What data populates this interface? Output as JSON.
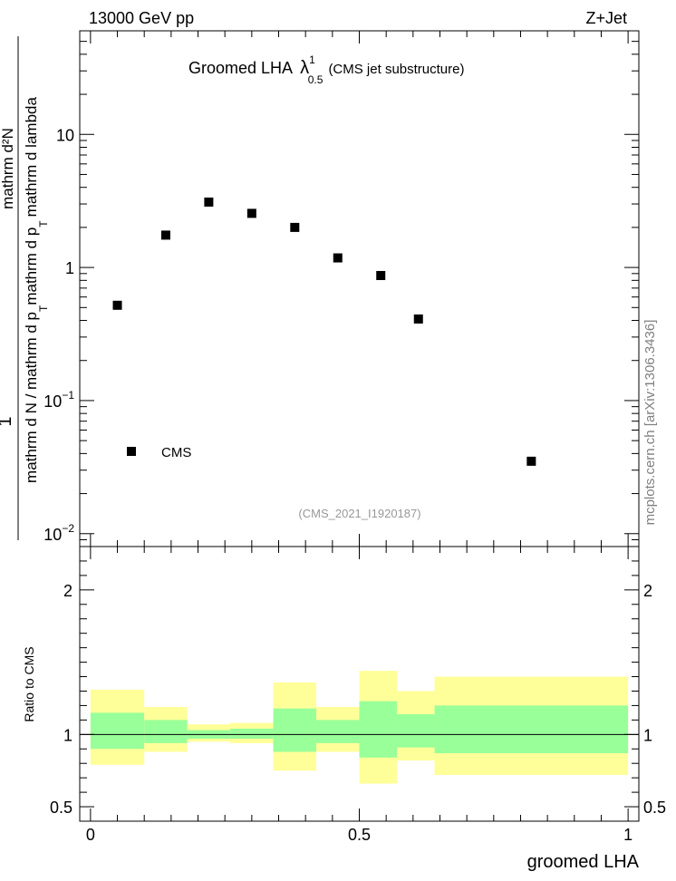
{
  "header": {
    "energy_label": "13000 GeV pp",
    "process_label": "Z+Jet"
  },
  "side_label": "mcplots.cern.ch [arXiv:1306.3436]",
  "chart_data": [
    {
      "type": "scatter",
      "title_prefix": "Groomed LHA",
      "title_symbol": "λ",
      "title_sup": "1",
      "title_sub": "0.5",
      "title_suffix": "(CMS jet substructure)",
      "analysis_id": "(CMS_2021_I1920187)",
      "ylabel_top": "1",
      "ylabel_parts": {
        "prefix": "mathrm d N / mathrm d p",
        "sub_t1": "T",
        "middle": "mathrm d p",
        "sub_t2": "T",
        "suffix": "mathrm d lambda"
      },
      "ylabel_num": "mathrm d²N",
      "yscale": "log",
      "ylim": [
        0.008,
        60
      ],
      "xlim": [
        -0.02,
        1.02
      ],
      "yticks": [
        {
          "value": 0.01,
          "base": "10",
          "exp": "−2"
        },
        {
          "value": 0.1,
          "base": "10",
          "exp": "−1"
        },
        {
          "value": 1,
          "base": "1",
          "exp": ""
        },
        {
          "value": 10,
          "base": "10",
          "exp": ""
        }
      ],
      "legend": {
        "label": "CMS",
        "position": "bottom-left"
      },
      "series": [
        {
          "name": "CMS",
          "marker": "square",
          "x": [
            0.05,
            0.14,
            0.22,
            0.3,
            0.38,
            0.46,
            0.54,
            0.61,
            0.82
          ],
          "y": [
            0.52,
            1.75,
            3.1,
            2.55,
            2.0,
            1.18,
            0.87,
            0.41,
            0.035
          ]
        }
      ]
    },
    {
      "type": "area",
      "ylabel": "Ratio to CMS",
      "xlabel": "groomed LHA",
      "ylim": [
        0.4,
        2.3
      ],
      "xlim": [
        -0.02,
        1.02
      ],
      "reference_line": 1,
      "xticks": [
        {
          "value": 0,
          "label": "0"
        },
        {
          "value": 0.5,
          "label": "0.5"
        },
        {
          "value": 1,
          "label": "1"
        }
      ],
      "yticks": [
        {
          "value": 0.5,
          "label": "0.5"
        },
        {
          "value": 1,
          "label": "1"
        },
        {
          "value": 2,
          "label": "2"
        }
      ],
      "bins": [
        {
          "x0": 0.0,
          "x1": 0.1,
          "stat_lo": 0.9,
          "stat_hi": 1.15,
          "tot_lo": 0.79,
          "tot_hi": 1.31
        },
        {
          "x0": 0.1,
          "x1": 0.18,
          "stat_lo": 0.94,
          "stat_hi": 1.1,
          "tot_lo": 0.88,
          "tot_hi": 1.19
        },
        {
          "x0": 0.18,
          "x1": 0.26,
          "stat_lo": 0.97,
          "stat_hi": 1.03,
          "tot_lo": 0.95,
          "tot_hi": 1.07
        },
        {
          "x0": 0.26,
          "x1": 0.34,
          "stat_lo": 0.97,
          "stat_hi": 1.04,
          "tot_lo": 0.94,
          "tot_hi": 1.08
        },
        {
          "x0": 0.34,
          "x1": 0.42,
          "stat_lo": 0.88,
          "stat_hi": 1.18,
          "tot_lo": 0.75,
          "tot_hi": 1.36
        },
        {
          "x0": 0.42,
          "x1": 0.5,
          "stat_lo": 0.94,
          "stat_hi": 1.1,
          "tot_lo": 0.88,
          "tot_hi": 1.19
        },
        {
          "x0": 0.5,
          "x1": 0.57,
          "stat_lo": 0.84,
          "stat_hi": 1.23,
          "tot_lo": 0.66,
          "tot_hi": 1.44
        },
        {
          "x0": 0.57,
          "x1": 0.64,
          "stat_lo": 0.91,
          "stat_hi": 1.14,
          "tot_lo": 0.82,
          "tot_hi": 1.3
        },
        {
          "x0": 0.64,
          "x1": 1.0,
          "stat_lo": 0.87,
          "stat_hi": 1.2,
          "tot_lo": 0.72,
          "tot_hi": 1.4
        }
      ],
      "colors": {
        "stat": "#99ff99",
        "total": "#ffff99",
        "line": "#000000"
      }
    }
  ]
}
